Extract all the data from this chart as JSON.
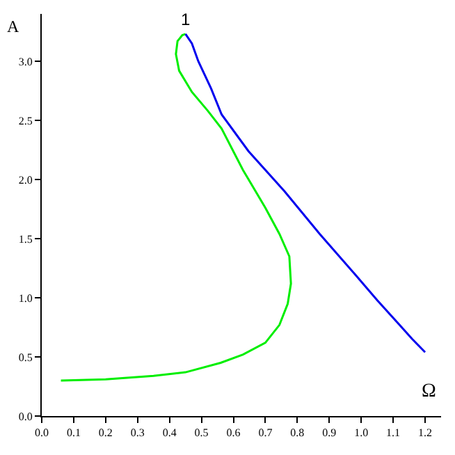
{
  "chart_data": {
    "type": "line",
    "xlabel": "Ω",
    "ylabel": "A",
    "series": [
      {
        "color": "#00ee00",
        "x": [
          0.06,
          0.2,
          0.35,
          0.45,
          0.56,
          0.63,
          0.7,
          0.744,
          0.77,
          0.78,
          0.775,
          0.744,
          0.7,
          0.63,
          0.563,
          0.52,
          0.47,
          0.43,
          0.42,
          0.425,
          0.44,
          0.45
        ],
        "values": [
          0.3,
          0.31,
          0.34,
          0.37,
          0.45,
          0.52,
          0.62,
          0.77,
          0.95,
          1.12,
          1.35,
          1.54,
          1.76,
          2.08,
          2.43,
          2.58,
          2.74,
          2.92,
          3.06,
          3.17,
          3.22,
          3.23
        ]
      },
      {
        "color": "#0000ee",
        "x": [
          0.45,
          0.47,
          0.49,
          0.53,
          0.563,
          0.647,
          0.76,
          0.87,
          0.98,
          1.05,
          1.12,
          1.16,
          1.2
        ],
        "values": [
          3.23,
          3.15,
          3.0,
          2.77,
          2.55,
          2.24,
          1.9,
          1.54,
          1.2,
          0.98,
          0.77,
          0.65,
          0.54
        ]
      }
    ],
    "annotations": [
      {
        "text": "1",
        "x": 0.45,
        "y": 3.23
      }
    ],
    "xlim": [
      0,
      1.25
    ],
    "ylim": [
      0,
      3.4
    ],
    "xticks": [
      {
        "value": 0,
        "label": "0.0"
      },
      0.1,
      0.2,
      0.3,
      0.4,
      0.5,
      0.6,
      0.7,
      0.8,
      0.9,
      {
        "value": 1,
        "label": "1.0"
      },
      1.1,
      1.2
    ],
    "yticks": [
      {
        "value": 0,
        "label": "0.0"
      },
      0.5,
      {
        "value": 1,
        "label": "1.0"
      },
      1.5,
      {
        "value": 2,
        "label": "2.0"
      },
      2.5,
      {
        "value": 3,
        "label": "3.0"
      }
    ],
    "line_style": "solid",
    "marker": "none"
  }
}
